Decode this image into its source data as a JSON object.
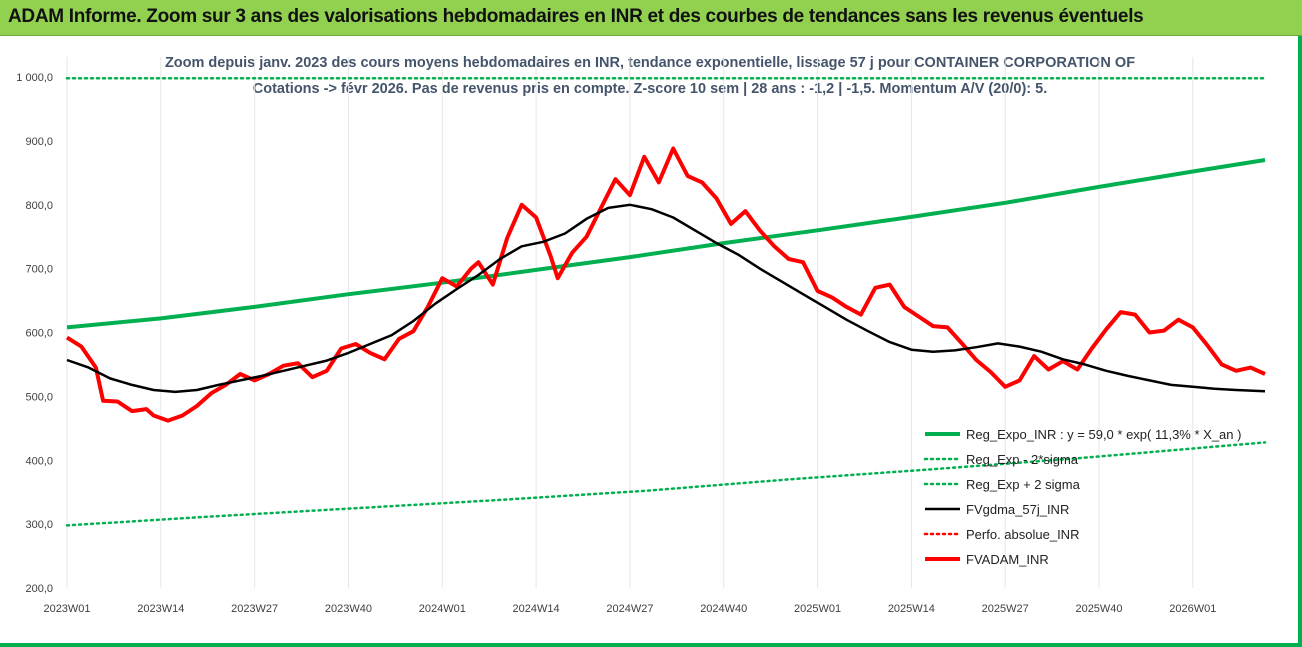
{
  "header": {
    "title": "ADAM Informe. Zoom sur 3 ans des valorisations hebdomadaires en INR et des courbes de tendances sans les revenus éventuels"
  },
  "colors": {
    "banner": "#92d050",
    "border": "#00b050",
    "reg_expo": "#00b050",
    "sigma": "#00b050",
    "fvgdma": "#000000",
    "perfo": "#ff0000",
    "fvadam": "#ff0000"
  },
  "chart_data": {
    "type": "line",
    "title_line1": "Zoom depuis janv. 2023 des cours moyens hebdomadaires en INR, tendance exponentielle, lissage 57 j pour CONTAINER CORPORATION OF",
    "title_line2": "Cotations -> févr 2026.  Pas de revenus pris en compte. Z-score 10 sem | 28 ans : -1,2 | -1,5. Momentum A/V (20/0): 5.",
    "ylim": [
      200,
      1000
    ],
    "y_ticks": [
      "1 000,0",
      "900,0",
      "800,0",
      "700,0",
      "600,0",
      "500,0",
      "400,0",
      "300,0",
      "200,0"
    ],
    "y_tick_values": [
      1000,
      900,
      800,
      700,
      600,
      500,
      400,
      300,
      200
    ],
    "x_ticks": [
      "2023W01",
      "2023W14",
      "2023W27",
      "2023W40",
      "2024W01",
      "2024W14",
      "2024W27",
      "2024W40",
      "2025W01",
      "2025W14",
      "2025W27",
      "2025W40",
      "2026W01"
    ],
    "x_tick_weeks": [
      0,
      13,
      26,
      39,
      52,
      65,
      78,
      91,
      104,
      117,
      130,
      143,
      156
    ],
    "x_range_weeks": [
      0,
      166
    ],
    "legend": [
      {
        "label": "Reg_Expo_INR : y = 59,0 * exp( 11,3% *  X_an )",
        "style": "solid-thick",
        "color": "#00b050"
      },
      {
        "label": "Reg_Exp - 2*sigma",
        "style": "dotted",
        "color": "#00b050"
      },
      {
        "label": "Reg_Exp + 2 sigma",
        "style": "dotted",
        "color": "#00b050"
      },
      {
        "label": "FVgdma_57j_INR",
        "style": "solid",
        "color": "#000000"
      },
      {
        "label": "Perfo. absolue_INR",
        "style": "dotted",
        "color": "#ff0000"
      },
      {
        "label": "FVADAM_INR",
        "style": "solid-thick",
        "color": "#ff0000"
      }
    ],
    "series": [
      {
        "name": "Reg_Expo_INR : y = 59,0 * exp( 11,3% *  X_an )",
        "points": [
          [
            0,
            608
          ],
          [
            13,
            622
          ],
          [
            26,
            640
          ],
          [
            39,
            660
          ],
          [
            52,
            678
          ],
          [
            65,
            698
          ],
          [
            78,
            718
          ],
          [
            91,
            740
          ],
          [
            104,
            760
          ],
          [
            117,
            781
          ],
          [
            130,
            803
          ],
          [
            143,
            828
          ],
          [
            156,
            852
          ],
          [
            166,
            870
          ]
        ]
      },
      {
        "name": "Reg_Exp - 2*sigma",
        "points": [
          [
            0,
            298
          ],
          [
            20,
            312
          ],
          [
            40,
            325
          ],
          [
            60,
            338
          ],
          [
            80,
            352
          ],
          [
            100,
            370
          ],
          [
            120,
            386
          ],
          [
            140,
            403
          ],
          [
            166,
            428
          ]
        ]
      },
      {
        "name": "Reg_Exp + 2 sigma",
        "points": [
          [
            0,
            998
          ],
          [
            166,
            998
          ]
        ]
      },
      {
        "name": "FVgdma_57j_INR",
        "points": [
          [
            0,
            557
          ],
          [
            3,
            545
          ],
          [
            6,
            528
          ],
          [
            9,
            518
          ],
          [
            12,
            510
          ],
          [
            15,
            507
          ],
          [
            18,
            510
          ],
          [
            21,
            518
          ],
          [
            24,
            525
          ],
          [
            27,
            532
          ],
          [
            30,
            540
          ],
          [
            33,
            548
          ],
          [
            36,
            556
          ],
          [
            39,
            568
          ],
          [
            42,
            582
          ],
          [
            45,
            596
          ],
          [
            48,
            618
          ],
          [
            51,
            645
          ],
          [
            54,
            668
          ],
          [
            57,
            690
          ],
          [
            60,
            715
          ],
          [
            63,
            735
          ],
          [
            66,
            742
          ],
          [
            69,
            755
          ],
          [
            72,
            778
          ],
          [
            75,
            795
          ],
          [
            78,
            800
          ],
          [
            81,
            793
          ],
          [
            84,
            780
          ],
          [
            87,
            760
          ],
          [
            90,
            740
          ],
          [
            93,
            722
          ],
          [
            96,
            700
          ],
          [
            99,
            680
          ],
          [
            102,
            660
          ],
          [
            105,
            640
          ],
          [
            108,
            620
          ],
          [
            111,
            602
          ],
          [
            114,
            585
          ],
          [
            117,
            573
          ],
          [
            120,
            570
          ],
          [
            123,
            572
          ],
          [
            126,
            577
          ],
          [
            129,
            583
          ],
          [
            132,
            578
          ],
          [
            135,
            570
          ],
          [
            138,
            558
          ],
          [
            141,
            550
          ],
          [
            144,
            540
          ],
          [
            147,
            532
          ],
          [
            150,
            525
          ],
          [
            153,
            518
          ],
          [
            156,
            515
          ],
          [
            159,
            512
          ],
          [
            162,
            510
          ],
          [
            166,
            508
          ]
        ]
      },
      {
        "name": "FVADAM_INR",
        "points": [
          [
            0,
            592
          ],
          [
            2,
            578
          ],
          [
            4,
            545
          ],
          [
            5,
            493
          ],
          [
            7,
            492
          ],
          [
            9,
            477
          ],
          [
            11,
            480
          ],
          [
            12,
            470
          ],
          [
            14,
            462
          ],
          [
            16,
            470
          ],
          [
            18,
            485
          ],
          [
            20,
            505
          ],
          [
            22,
            518
          ],
          [
            24,
            535
          ],
          [
            26,
            525
          ],
          [
            28,
            535
          ],
          [
            30,
            548
          ],
          [
            32,
            552
          ],
          [
            34,
            530
          ],
          [
            36,
            540
          ],
          [
            38,
            575
          ],
          [
            40,
            582
          ],
          [
            42,
            568
          ],
          [
            44,
            558
          ],
          [
            46,
            590
          ],
          [
            48,
            602
          ],
          [
            50,
            640
          ],
          [
            52,
            685
          ],
          [
            54,
            672
          ],
          [
            56,
            700
          ],
          [
            57,
            710
          ],
          [
            59,
            675
          ],
          [
            61,
            748
          ],
          [
            63,
            800
          ],
          [
            65,
            780
          ],
          [
            67,
            720
          ],
          [
            68,
            685
          ],
          [
            70,
            725
          ],
          [
            72,
            750
          ],
          [
            74,
            795
          ],
          [
            76,
            840
          ],
          [
            78,
            815
          ],
          [
            80,
            875
          ],
          [
            82,
            835
          ],
          [
            84,
            888
          ],
          [
            86,
            845
          ],
          [
            88,
            835
          ],
          [
            90,
            810
          ],
          [
            92,
            770
          ],
          [
            94,
            790
          ],
          [
            96,
            760
          ],
          [
            98,
            735
          ],
          [
            100,
            715
          ],
          [
            102,
            710
          ],
          [
            104,
            665
          ],
          [
            106,
            655
          ],
          [
            108,
            640
          ],
          [
            110,
            628
          ],
          [
            112,
            670
          ],
          [
            114,
            675
          ],
          [
            116,
            640
          ],
          [
            118,
            625
          ],
          [
            120,
            610
          ],
          [
            122,
            608
          ],
          [
            124,
            583
          ],
          [
            126,
            557
          ],
          [
            128,
            538
          ],
          [
            130,
            515
          ],
          [
            132,
            525
          ],
          [
            134,
            563
          ],
          [
            136,
            542
          ],
          [
            138,
            555
          ],
          [
            140,
            542
          ],
          [
            142,
            575
          ],
          [
            144,
            605
          ],
          [
            146,
            632
          ],
          [
            148,
            628
          ],
          [
            150,
            600
          ],
          [
            152,
            603
          ],
          [
            154,
            620
          ],
          [
            156,
            608
          ],
          [
            158,
            580
          ],
          [
            160,
            550
          ],
          [
            162,
            540
          ],
          [
            164,
            545
          ],
          [
            166,
            535
          ]
        ]
      }
    ]
  }
}
